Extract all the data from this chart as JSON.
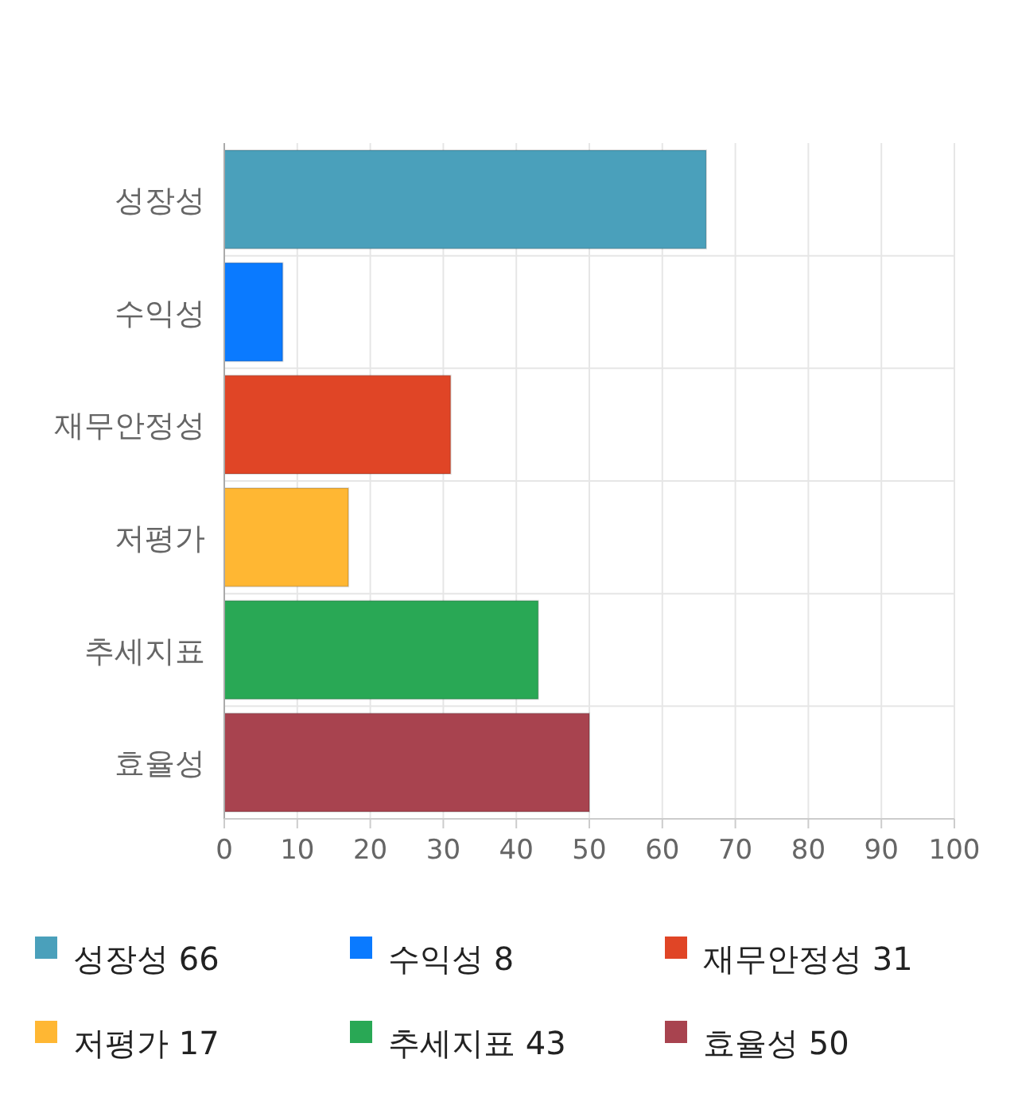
{
  "chart_data": {
    "type": "bar",
    "orientation": "horizontal",
    "categories": [
      "성장성",
      "수익성",
      "재무안정성",
      "저평가",
      "추세지표",
      "효율성"
    ],
    "series": [
      {
        "name": "성장성 66",
        "color": "#4aa0bb",
        "values": [
          66,
          null,
          null,
          null,
          null,
          null
        ]
      },
      {
        "name": "수익성 8",
        "color": "#0a7aff",
        "values": [
          null,
          8,
          null,
          null,
          null,
          null
        ]
      },
      {
        "name": "재무안정성 31",
        "color": "#e04526",
        "values": [
          null,
          null,
          31,
          null,
          null,
          null
        ]
      },
      {
        "name": "저평가 17",
        "color": "#ffb733",
        "values": [
          null,
          null,
          null,
          17,
          null,
          null
        ]
      },
      {
        "name": "추세지표 43",
        "color": "#29a855",
        "values": [
          null,
          null,
          null,
          null,
          43,
          null
        ]
      },
      {
        "name": "효율성 50",
        "color": "#a8434f",
        "values": [
          null,
          null,
          null,
          null,
          null,
          50
        ]
      }
    ],
    "xlim": [
      0,
      100
    ],
    "xticks": [
      0,
      10,
      20,
      30,
      40,
      50,
      60,
      70,
      80,
      90,
      100
    ],
    "grid": true,
    "legend": "bottom"
  }
}
